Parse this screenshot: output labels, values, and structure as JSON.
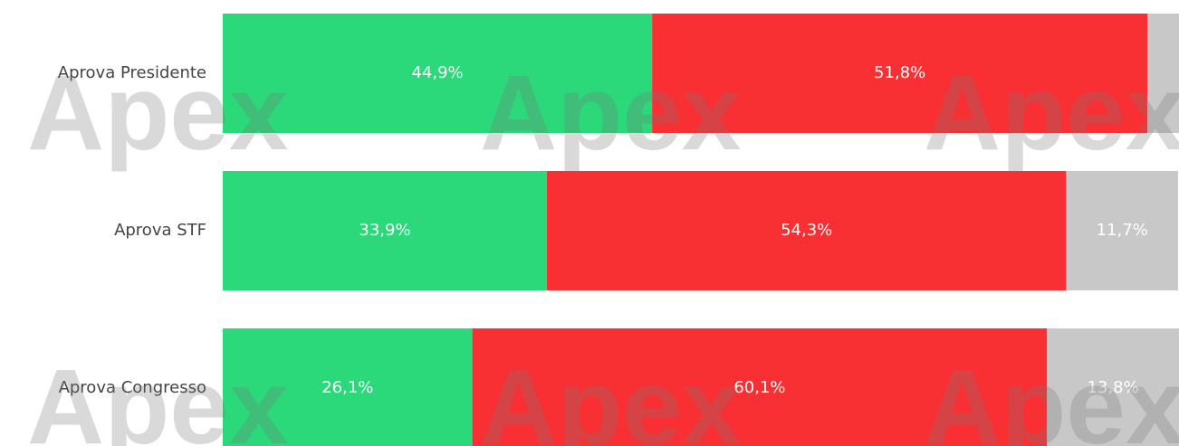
{
  "chart_data": {
    "type": "stacked-barh",
    "categories": [
      "Aprova Presidente",
      "Aprova STF",
      "Aprova Congresso"
    ],
    "series": [
      {
        "color": "#2bd97b",
        "values": [
          44.9,
          33.9,
          26.1
        ],
        "value_labels": [
          "44,9%",
          "33,9%",
          "26,1%"
        ]
      },
      {
        "color": "#f93033",
        "values": [
          51.8,
          54.3,
          60.1
        ],
        "value_labels": [
          "51,8%",
          "54,3%",
          "60,1%"
        ]
      },
      {
        "color": "#c8c8c8",
        "values": [
          3.3,
          11.7,
          13.8
        ],
        "value_labels": [
          null,
          "11,7%",
          "13,8%"
        ]
      }
    ],
    "xlim": [
      0,
      100
    ],
    "watermark": "Apex"
  }
}
